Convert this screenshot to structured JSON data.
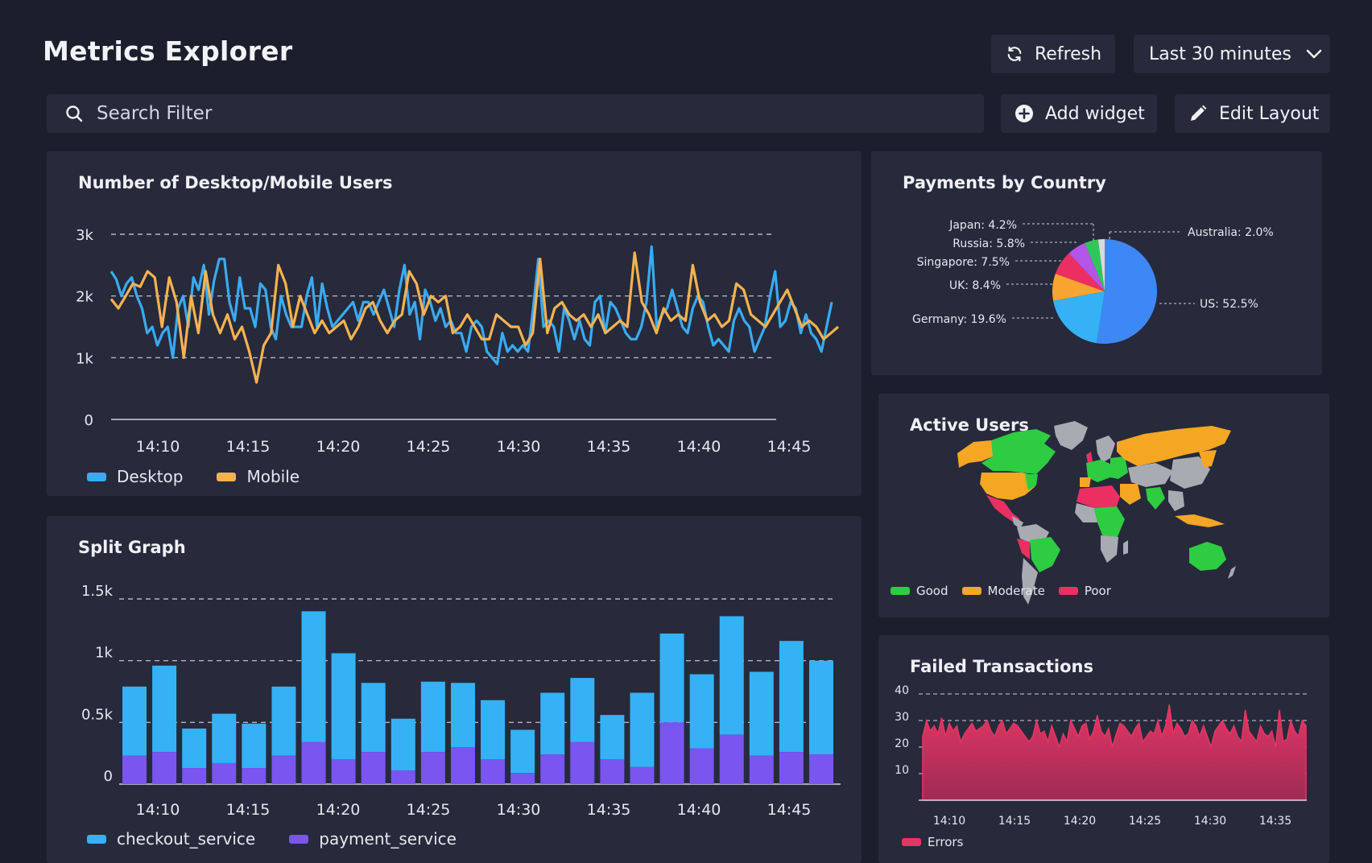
{
  "header": {
    "title": "Metrics Explorer",
    "refresh_label": "Refresh",
    "time_range": "Last 30 minutes"
  },
  "toolbar": {
    "search_placeholder": "Search Filter",
    "add_widget_label": "Add widget",
    "edit_layout_label": "Edit Layout"
  },
  "icons": {
    "refresh": "refresh-icon",
    "chevron": "chevron-down-icon",
    "search": "search-icon",
    "add": "plus-circle-icon",
    "edit": "pencil-icon"
  },
  "colors": {
    "desktop": "#3aaaf2",
    "mobile": "#f7b24f",
    "checkout": "#35b1f5",
    "payment": "#7a55f0",
    "errors": "#e53663",
    "good": "#2ecc40",
    "moderate": "#f5a623",
    "poor": "#ec2f62",
    "land": "#a9abb3"
  },
  "chart_data": [
    {
      "id": "users",
      "type": "line",
      "title": "Number of Desktop/Mobile Users",
      "x_ticks": [
        "14:10",
        "14:15",
        "14:20",
        "14:25",
        "14:30",
        "14:35",
        "14:40",
        "14:45"
      ],
      "y_ticks": [
        "3k",
        "2k",
        "1k",
        "0"
      ],
      "ylim": [
        0,
        3000
      ],
      "grid": "dashed at 1k, 2k, 3k",
      "series": [
        {
          "name": "Desktop",
          "values": [
            2400,
            2270,
            2000,
            2200,
            2300,
            2000,
            1800,
            1400,
            1500,
            1200,
            1400,
            1500,
            1000,
            1800,
            2000,
            1500,
            2300,
            2100,
            2500,
            1700,
            2250,
            2600,
            2600,
            1900,
            1600,
            2300,
            1800,
            1800,
            1500,
            2200,
            2100,
            1500,
            1300,
            2000,
            1700,
            1500,
            1500,
            1500,
            2000,
            2300,
            1500,
            2200,
            1800,
            1500,
            1600,
            1700,
            1800,
            1900,
            1600,
            1900,
            1900,
            1700,
            1900,
            2100,
            1800,
            1500,
            2100,
            2500,
            1700,
            1900,
            1300,
            2100,
            1900,
            1600,
            1800,
            1500,
            1600,
            1400,
            1400,
            1100,
            1500,
            1600,
            1500,
            1100,
            1000,
            900,
            1400,
            1100,
            1200,
            1100,
            1200,
            1100,
            1800,
            2600,
            1500,
            1600,
            1500,
            1100,
            1800,
            1600,
            1300,
            1600,
            1300,
            1200,
            1900,
            2000,
            1400,
            1900,
            1800,
            1600,
            1400,
            1300,
            1300,
            1500,
            1900,
            2800,
            1500,
            1700,
            1800,
            2100,
            1800,
            1500,
            1400,
            1800,
            2000,
            1900,
            1500,
            1200,
            1300,
            1200,
            1100,
            1600,
            1800,
            1600,
            1500,
            1100,
            1300,
            1500,
            2000,
            2400,
            1500,
            1600,
            1900,
            1800,
            1400,
            1700,
            1400,
            1300,
            1100,
            1500,
            1900
          ]
        },
        {
          "name": "Mobile",
          "values": [
            1950,
            1800,
            2000,
            2200,
            2150,
            2400,
            2300,
            1500,
            2300,
            1900,
            1000,
            2000,
            1400,
            2400,
            1700,
            1400,
            1700,
            1300,
            1500,
            1100,
            600,
            1200,
            1400,
            2500,
            2200,
            1500,
            2000,
            1700,
            1400,
            1600,
            1400,
            1500,
            1600,
            1300,
            1500,
            1800,
            1900,
            1600,
            1400,
            1600,
            1700,
            2400,
            2200,
            1700,
            2000,
            1900,
            2000,
            1400,
            1500,
            1700,
            1500,
            1300,
            1300,
            1700,
            1600,
            1500,
            1500,
            1200,
            1400,
            2600,
            1400,
            1800,
            1900,
            1700,
            1600,
            1700,
            1500,
            1700,
            1400,
            1500,
            1600,
            1500,
            2700,
            1900,
            1700,
            1400,
            1800,
            1600,
            1700,
            1600,
            2500,
            1900,
            1600,
            1700,
            1500,
            1600,
            2200,
            2100,
            1700,
            1600,
            1500,
            1700,
            1900,
            2100,
            1800,
            1500,
            1600,
            1500,
            1300,
            1400,
            1500
          ]
        }
      ],
      "legend": [
        "Desktop",
        "Mobile"
      ]
    },
    {
      "id": "split",
      "type": "bar",
      "title": "Split Graph",
      "x_ticks": [
        "14:10",
        "14:15",
        "14:20",
        "14:25",
        "14:30",
        "14:35",
        "14:40",
        "14:45"
      ],
      "y_ticks": [
        "1.5k",
        "1k",
        "0.5k",
        "0"
      ],
      "ylim": [
        0,
        1500
      ],
      "stacked": true,
      "series": [
        {
          "name": "checkout_service",
          "values": [
            560,
            700,
            320,
            400,
            360,
            560,
            1060,
            860,
            560,
            420,
            570,
            520,
            480,
            350,
            500,
            520,
            360,
            600,
            720,
            600,
            960,
            680,
            900,
            760
          ]
        },
        {
          "name": "payment_service",
          "values": [
            230,
            260,
            130,
            170,
            130,
            230,
            340,
            200,
            260,
            110,
            260,
            300,
            200,
            90,
            240,
            340,
            200,
            140,
            500,
            290,
            400,
            230,
            260,
            240
          ]
        }
      ],
      "legend": [
        "checkout_service",
        "payment_service"
      ]
    },
    {
      "id": "payments",
      "type": "pie",
      "title": "Payments by Country",
      "slices": [
        {
          "label": "US: 52.5%",
          "name": "US",
          "value": 52.5,
          "color": "#3d88f5"
        },
        {
          "label": "Germany: 19.6%",
          "name": "Germany",
          "value": 19.6,
          "color": "#35b1f5"
        },
        {
          "label": "UK: 8.4%",
          "name": "UK",
          "value": 8.4,
          "color": "#f7a431"
        },
        {
          "label": "Singapore: 7.5%",
          "name": "Singapore",
          "value": 7.5,
          "color": "#ec2f62"
        },
        {
          "label": "Russia: 5.8%",
          "name": "Russia",
          "value": 5.8,
          "color": "#b356e8"
        },
        {
          "label": "Japan: 4.2%",
          "name": "Japan",
          "value": 4.2,
          "color": "#31c659"
        },
        {
          "label": "Australia: 2.0%",
          "name": "Australia",
          "value": 2.0,
          "color": "#d8d9dd"
        }
      ]
    },
    {
      "id": "failed",
      "type": "area",
      "title": "Failed Transactions",
      "x_ticks": [
        "14:10",
        "14:15",
        "14:20",
        "14:25",
        "14:30",
        "14:35"
      ],
      "y_ticks": [
        "40",
        "30",
        "20",
        "10"
      ],
      "ylim": [
        0,
        40
      ],
      "series": [
        {
          "name": "Errors",
          "values": [
            24,
            30,
            26,
            28,
            25,
            31,
            24,
            29,
            26,
            28,
            22,
            25,
            27,
            29,
            26,
            27,
            28,
            30,
            26,
            24,
            28,
            30,
            25,
            27,
            29,
            28,
            26,
            24,
            22,
            24,
            30,
            25,
            26,
            22,
            28,
            24,
            20,
            25,
            22,
            30,
            27,
            24,
            28,
            29,
            23,
            26,
            32,
            26,
            24,
            27,
            20,
            25,
            29,
            28,
            26,
            24,
            27,
            29,
            22,
            24,
            26,
            25,
            30,
            24,
            28,
            36,
            25,
            29,
            27,
            24,
            25,
            30,
            28,
            24,
            28,
            24,
            20,
            26,
            28,
            30,
            27,
            25,
            28,
            24,
            22,
            34,
            26,
            24,
            22,
            28,
            25,
            24,
            26,
            20,
            34,
            22,
            23,
            30,
            26,
            24,
            30,
            28
          ]
        }
      ],
      "legend": [
        "Errors"
      ]
    }
  ],
  "active_users": {
    "title": "Active Users",
    "legend": [
      "Good",
      "Moderate",
      "Poor"
    ]
  }
}
